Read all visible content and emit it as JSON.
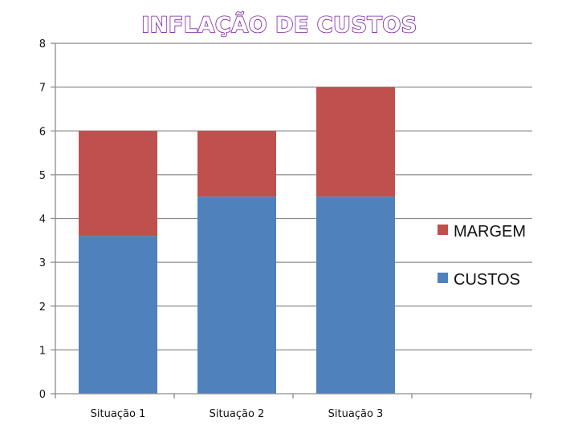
{
  "chart_data": {
    "type": "bar",
    "stacked": true,
    "title": "INFLAÇÃO DE CUSTOS",
    "categories": [
      "Situação 1",
      "Situação 2",
      "Situação 3"
    ],
    "series": [
      {
        "name": "CUSTOS",
        "values": [
          3.6,
          4.5,
          4.5
        ],
        "color": "#4f81bd"
      },
      {
        "name": "MARGEM",
        "values": [
          2.4,
          1.5,
          2.5
        ],
        "color": "#c0504d"
      }
    ],
    "ylim": [
      0,
      8
    ],
    "yticks": [
      "0",
      "1",
      "2",
      "3",
      "4",
      "5",
      "6",
      "7",
      "8"
    ],
    "grid": true,
    "legend": "right"
  }
}
